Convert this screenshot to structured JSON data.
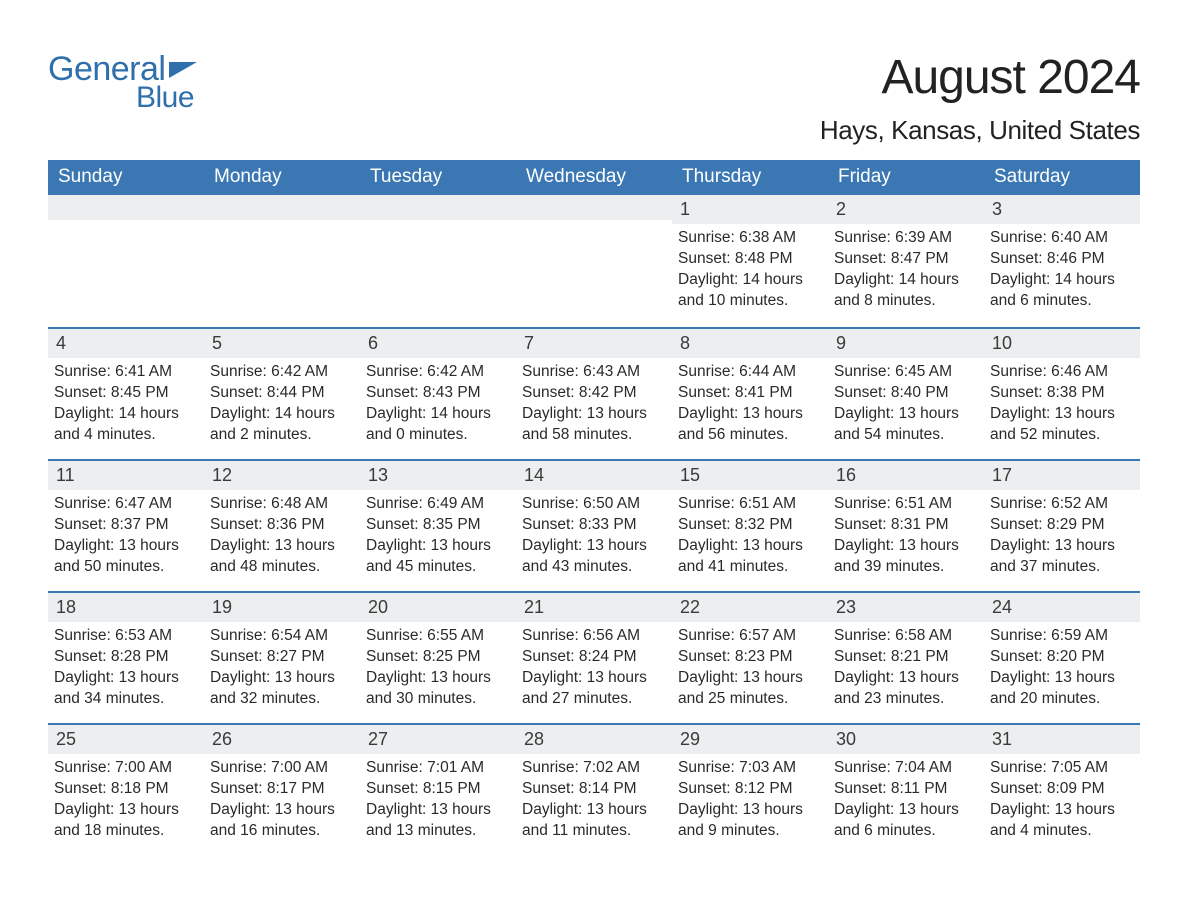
{
  "brand": {
    "line1": "General",
    "line2": "Blue",
    "color": "#2f6fac"
  },
  "title": "August 2024",
  "location": "Hays, Kansas, United States",
  "colors": {
    "header_bg": "#3a77b3",
    "header_text": "#ffffff",
    "daynum_bg": "#eceeef",
    "week_border": "#3a77b3",
    "text": "#2a2a2a",
    "background": "#ffffff"
  },
  "typography": {
    "title_fontsize": 48,
    "location_fontsize": 26,
    "dow_fontsize": 19,
    "daynum_fontsize": 18,
    "body_fontsize": 15.5
  },
  "layout": {
    "columns": 7,
    "rows": 5,
    "first_weekday": "Sunday"
  },
  "dow": [
    "Sunday",
    "Monday",
    "Tuesday",
    "Wednesday",
    "Thursday",
    "Friday",
    "Saturday"
  ],
  "weeks": [
    [
      null,
      null,
      null,
      null,
      {
        "n": "1",
        "sunrise": "Sunrise: 6:38 AM",
        "sunset": "Sunset: 8:48 PM",
        "daylight": "Daylight: 14 hours and 10 minutes."
      },
      {
        "n": "2",
        "sunrise": "Sunrise: 6:39 AM",
        "sunset": "Sunset: 8:47 PM",
        "daylight": "Daylight: 14 hours and 8 minutes."
      },
      {
        "n": "3",
        "sunrise": "Sunrise: 6:40 AM",
        "sunset": "Sunset: 8:46 PM",
        "daylight": "Daylight: 14 hours and 6 minutes."
      }
    ],
    [
      {
        "n": "4",
        "sunrise": "Sunrise: 6:41 AM",
        "sunset": "Sunset: 8:45 PM",
        "daylight": "Daylight: 14 hours and 4 minutes."
      },
      {
        "n": "5",
        "sunrise": "Sunrise: 6:42 AM",
        "sunset": "Sunset: 8:44 PM",
        "daylight": "Daylight: 14 hours and 2 minutes."
      },
      {
        "n": "6",
        "sunrise": "Sunrise: 6:42 AM",
        "sunset": "Sunset: 8:43 PM",
        "daylight": "Daylight: 14 hours and 0 minutes."
      },
      {
        "n": "7",
        "sunrise": "Sunrise: 6:43 AM",
        "sunset": "Sunset: 8:42 PM",
        "daylight": "Daylight: 13 hours and 58 minutes."
      },
      {
        "n": "8",
        "sunrise": "Sunrise: 6:44 AM",
        "sunset": "Sunset: 8:41 PM",
        "daylight": "Daylight: 13 hours and 56 minutes."
      },
      {
        "n": "9",
        "sunrise": "Sunrise: 6:45 AM",
        "sunset": "Sunset: 8:40 PM",
        "daylight": "Daylight: 13 hours and 54 minutes."
      },
      {
        "n": "10",
        "sunrise": "Sunrise: 6:46 AM",
        "sunset": "Sunset: 8:38 PM",
        "daylight": "Daylight: 13 hours and 52 minutes."
      }
    ],
    [
      {
        "n": "11",
        "sunrise": "Sunrise: 6:47 AM",
        "sunset": "Sunset: 8:37 PM",
        "daylight": "Daylight: 13 hours and 50 minutes."
      },
      {
        "n": "12",
        "sunrise": "Sunrise: 6:48 AM",
        "sunset": "Sunset: 8:36 PM",
        "daylight": "Daylight: 13 hours and 48 minutes."
      },
      {
        "n": "13",
        "sunrise": "Sunrise: 6:49 AM",
        "sunset": "Sunset: 8:35 PM",
        "daylight": "Daylight: 13 hours and 45 minutes."
      },
      {
        "n": "14",
        "sunrise": "Sunrise: 6:50 AM",
        "sunset": "Sunset: 8:33 PM",
        "daylight": "Daylight: 13 hours and 43 minutes."
      },
      {
        "n": "15",
        "sunrise": "Sunrise: 6:51 AM",
        "sunset": "Sunset: 8:32 PM",
        "daylight": "Daylight: 13 hours and 41 minutes."
      },
      {
        "n": "16",
        "sunrise": "Sunrise: 6:51 AM",
        "sunset": "Sunset: 8:31 PM",
        "daylight": "Daylight: 13 hours and 39 minutes."
      },
      {
        "n": "17",
        "sunrise": "Sunrise: 6:52 AM",
        "sunset": "Sunset: 8:29 PM",
        "daylight": "Daylight: 13 hours and 37 minutes."
      }
    ],
    [
      {
        "n": "18",
        "sunrise": "Sunrise: 6:53 AM",
        "sunset": "Sunset: 8:28 PM",
        "daylight": "Daylight: 13 hours and 34 minutes."
      },
      {
        "n": "19",
        "sunrise": "Sunrise: 6:54 AM",
        "sunset": "Sunset: 8:27 PM",
        "daylight": "Daylight: 13 hours and 32 minutes."
      },
      {
        "n": "20",
        "sunrise": "Sunrise: 6:55 AM",
        "sunset": "Sunset: 8:25 PM",
        "daylight": "Daylight: 13 hours and 30 minutes."
      },
      {
        "n": "21",
        "sunrise": "Sunrise: 6:56 AM",
        "sunset": "Sunset: 8:24 PM",
        "daylight": "Daylight: 13 hours and 27 minutes."
      },
      {
        "n": "22",
        "sunrise": "Sunrise: 6:57 AM",
        "sunset": "Sunset: 8:23 PM",
        "daylight": "Daylight: 13 hours and 25 minutes."
      },
      {
        "n": "23",
        "sunrise": "Sunrise: 6:58 AM",
        "sunset": "Sunset: 8:21 PM",
        "daylight": "Daylight: 13 hours and 23 minutes."
      },
      {
        "n": "24",
        "sunrise": "Sunrise: 6:59 AM",
        "sunset": "Sunset: 8:20 PM",
        "daylight": "Daylight: 13 hours and 20 minutes."
      }
    ],
    [
      {
        "n": "25",
        "sunrise": "Sunrise: 7:00 AM",
        "sunset": "Sunset: 8:18 PM",
        "daylight": "Daylight: 13 hours and 18 minutes."
      },
      {
        "n": "26",
        "sunrise": "Sunrise: 7:00 AM",
        "sunset": "Sunset: 8:17 PM",
        "daylight": "Daylight: 13 hours and 16 minutes."
      },
      {
        "n": "27",
        "sunrise": "Sunrise: 7:01 AM",
        "sunset": "Sunset: 8:15 PM",
        "daylight": "Daylight: 13 hours and 13 minutes."
      },
      {
        "n": "28",
        "sunrise": "Sunrise: 7:02 AM",
        "sunset": "Sunset: 8:14 PM",
        "daylight": "Daylight: 13 hours and 11 minutes."
      },
      {
        "n": "29",
        "sunrise": "Sunrise: 7:03 AM",
        "sunset": "Sunset: 8:12 PM",
        "daylight": "Daylight: 13 hours and 9 minutes."
      },
      {
        "n": "30",
        "sunrise": "Sunrise: 7:04 AM",
        "sunset": "Sunset: 8:11 PM",
        "daylight": "Daylight: 13 hours and 6 minutes."
      },
      {
        "n": "31",
        "sunrise": "Sunrise: 7:05 AM",
        "sunset": "Sunset: 8:09 PM",
        "daylight": "Daylight: 13 hours and 4 minutes."
      }
    ]
  ]
}
